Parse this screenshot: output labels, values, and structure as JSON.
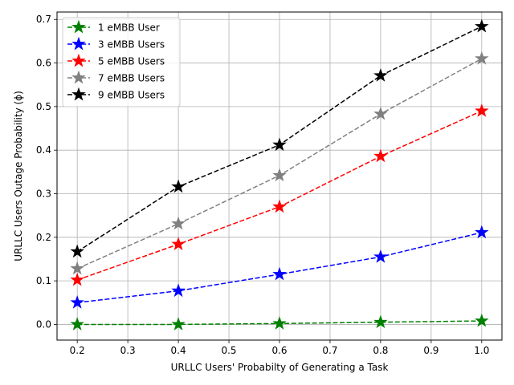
{
  "chart_data": {
    "type": "line",
    "title": "",
    "xlabel": "URLLC Users' Probabilty of Generating a Task",
    "ylabel": "URLLC Users Outage Probability (ϕ)",
    "xlim": [
      0.16,
      1.04
    ],
    "ylim": [
      -0.036,
      0.717
    ],
    "xticks": [
      0.2,
      0.3,
      0.4,
      0.5,
      0.6,
      0.7,
      0.8,
      0.9,
      1.0
    ],
    "xtick_labels": [
      "0.2",
      "0.3",
      "0.4",
      "0.5",
      "0.6",
      "0.7",
      "0.8",
      "0.9",
      "1.0"
    ],
    "yticks": [
      0.0,
      0.1,
      0.2,
      0.3,
      0.4,
      0.5,
      0.6,
      0.7
    ],
    "ytick_labels": [
      "0.0",
      "0.1",
      "0.2",
      "0.3",
      "0.4",
      "0.5",
      "0.6",
      "0.7"
    ],
    "grid": true,
    "legend_position": "top-left",
    "x": [
      0.2,
      0.4,
      0.6,
      0.8,
      1.0
    ],
    "series": [
      {
        "name": "1 eMBB User",
        "color": "#008000",
        "values": [
          0.0,
          0.0,
          0.002,
          0.005,
          0.008
        ]
      },
      {
        "name": "3 eMBB Users",
        "color": "#0000ff",
        "values": [
          0.05,
          0.077,
          0.115,
          0.155,
          0.211
        ]
      },
      {
        "name": "5 eMBB Users",
        "color": "#ff0000",
        "values": [
          0.102,
          0.184,
          0.27,
          0.386,
          0.49
        ]
      },
      {
        "name": "7 eMBB Users",
        "color": "#808080",
        "values": [
          0.128,
          0.231,
          0.342,
          0.483,
          0.61
        ]
      },
      {
        "name": "9 eMBB Users",
        "color": "#000000",
        "values": [
          0.167,
          0.316,
          0.412,
          0.571,
          0.684
        ]
      }
    ]
  }
}
